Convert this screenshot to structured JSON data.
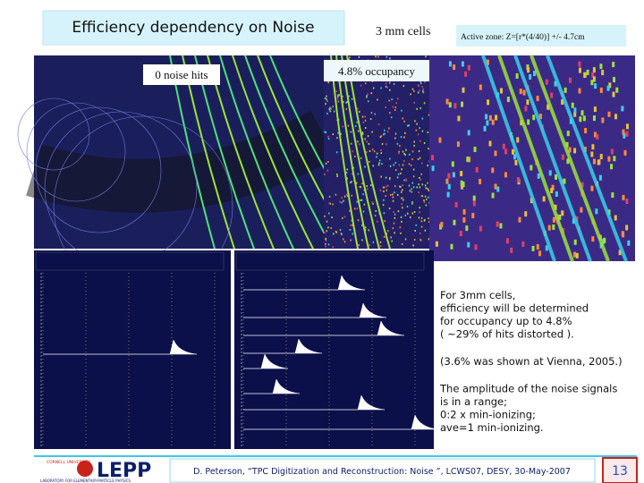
{
  "header": {
    "title": "Efficiency dependency on Noise",
    "cell_size": "3 mm cells",
    "active_zone": "Active zone: Z=[r*(4/40)] +/- 4.7cm"
  },
  "images": {
    "left_label": "0 noise hits",
    "right_label": "4.8% occupancy"
  },
  "notes": {
    "paragraph_1": [
      "For 3mm cells,",
      "efficiency will be determined",
      "for occupancy up to 4.8%",
      "( ~29% of hits distorted )."
    ],
    "paragraph_2": [
      "(3.6% was shown at Vienna, 2005.)"
    ],
    "paragraph_3": [
      "The amplitude of the noise signals",
      "is in a range;",
      "0:2 x min-ionizing;",
      "ave=1 min-ionizing."
    ]
  },
  "footer": {
    "university": "CORNELL UNIVERSITY",
    "logo": "LEPP",
    "lab": "LABORATORY FOR ELEMENTARY-PARTICLE PHYSICS",
    "citation": "D. Peterson, “TPC Digitization and Reconstruction: Noise ”, LCWS07, DESY, 30-May-2007",
    "page": "13"
  }
}
